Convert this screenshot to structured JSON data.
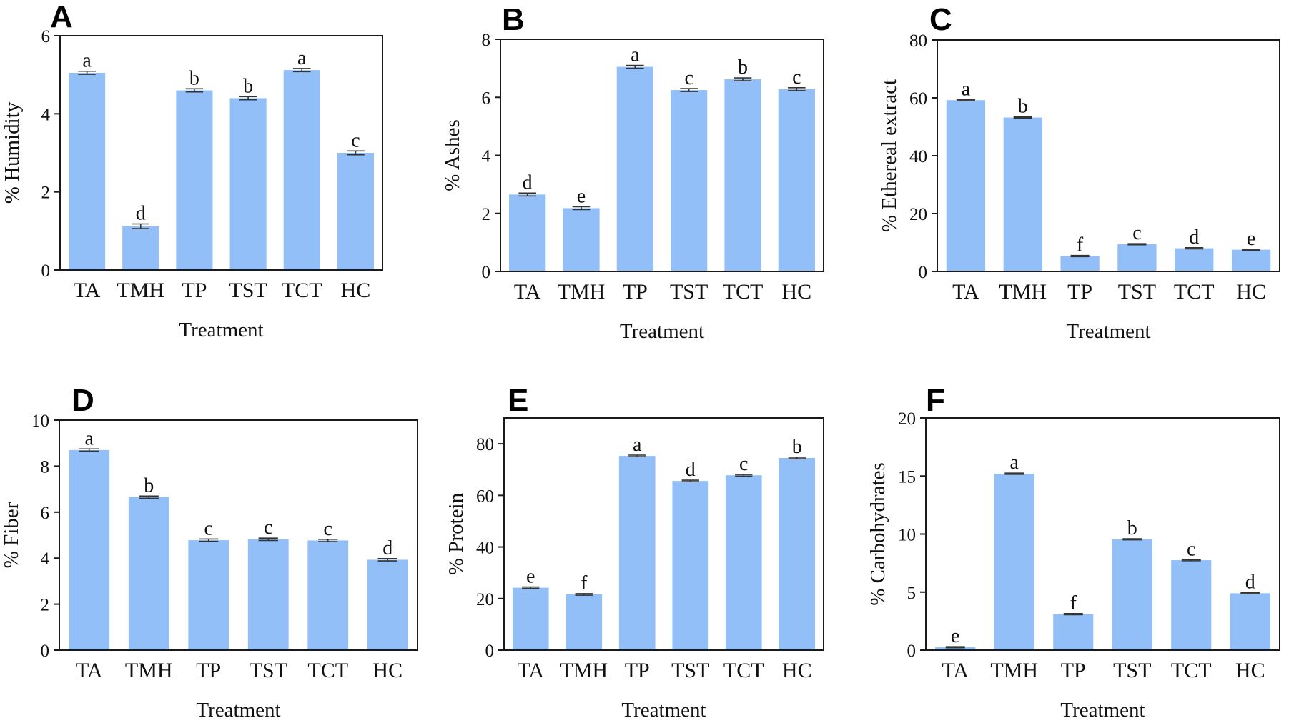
{
  "chart_data": [
    {
      "panel": "A",
      "type": "bar",
      "categories": [
        "TA",
        "TMH",
        "TP",
        "TST",
        "TCT",
        "HC"
      ],
      "values": [
        5.05,
        1.12,
        4.6,
        4.4,
        5.12,
        3.0
      ],
      "errors": [
        0.04,
        0.06,
        0.04,
        0.04,
        0.04,
        0.05
      ],
      "letters": [
        "a",
        "d",
        "b",
        "b",
        "a",
        "c"
      ],
      "xlabel": "Treatment",
      "ylabel": "% Humidity",
      "ylim": [
        0,
        6
      ],
      "yticks": [
        0,
        2,
        4,
        6
      ],
      "color": "#92bff7"
    },
    {
      "panel": "B",
      "type": "bar",
      "categories": [
        "TA",
        "TMH",
        "TP",
        "TST",
        "TCT",
        "HC"
      ],
      "values": [
        2.65,
        2.18,
        7.05,
        6.25,
        6.62,
        6.28
      ],
      "errors": [
        0.05,
        0.05,
        0.05,
        0.05,
        0.05,
        0.05
      ],
      "letters": [
        "d",
        "e",
        "a",
        "c",
        "b",
        "c"
      ],
      "xlabel": "Treatment",
      "ylabel": "% Ashes",
      "ylim": [
        0,
        8
      ],
      "yticks": [
        0,
        2,
        4,
        6,
        8
      ],
      "color": "#92bff7"
    },
    {
      "panel": "C",
      "type": "bar",
      "categories": [
        "TA",
        "TMH",
        "TP",
        "TST",
        "TCT",
        "HC"
      ],
      "values": [
        59.2,
        53.2,
        5.3,
        9.4,
        8.0,
        7.5
      ],
      "errors": [
        0.2,
        0.2,
        0.2,
        0.2,
        0.2,
        0.2
      ],
      "letters": [
        "a",
        "b",
        "f",
        "c",
        "d",
        "e"
      ],
      "xlabel": "Treatment",
      "ylabel": "% Ethereal extract",
      "ylim": [
        0,
        80
      ],
      "yticks": [
        0,
        20,
        40,
        60,
        80
      ],
      "color": "#92bff7"
    },
    {
      "panel": "D",
      "type": "bar",
      "categories": [
        "TA",
        "TMH",
        "TP",
        "TST",
        "TCT",
        "HC"
      ],
      "values": [
        8.7,
        6.65,
        4.78,
        4.82,
        4.77,
        3.93
      ],
      "errors": [
        0.05,
        0.05,
        0.05,
        0.05,
        0.05,
        0.05
      ],
      "letters": [
        "a",
        "b",
        "c",
        "c",
        "c",
        "d"
      ],
      "xlabel": "Treatment",
      "ylabel": "% Fiber",
      "ylim": [
        0,
        10
      ],
      "yticks": [
        0,
        2,
        4,
        6,
        8,
        10
      ],
      "color": "#92bff7"
    },
    {
      "panel": "E",
      "type": "bar",
      "categories": [
        "TA",
        "TMH",
        "TP",
        "TST",
        "TCT",
        "HC"
      ],
      "values": [
        24.2,
        21.6,
        75.3,
        65.6,
        67.8,
        74.5
      ],
      "errors": [
        0.3,
        0.3,
        0.3,
        0.3,
        0.3,
        0.3
      ],
      "letters": [
        "e",
        "f",
        "a",
        "d",
        "c",
        "b"
      ],
      "xlabel": "Treatment",
      "ylabel": "% Protein",
      "ylim": [
        0,
        90
      ],
      "yticks": [
        0,
        20,
        40,
        60,
        80
      ],
      "color": "#92bff7"
    },
    {
      "panel": "F",
      "type": "bar",
      "categories": [
        "TA",
        "TMH",
        "TP",
        "TST",
        "TCT",
        "HC"
      ],
      "values": [
        0.25,
        15.2,
        3.1,
        9.55,
        7.75,
        4.9
      ],
      "errors": [
        0.05,
        0.05,
        0.05,
        0.05,
        0.05,
        0.05
      ],
      "letters": [
        "e",
        "a",
        "f",
        "b",
        "c",
        "d"
      ],
      "xlabel": "Treatment",
      "ylabel": "% Carbohydrates",
      "ylim": [
        0,
        20
      ],
      "yticks": [
        0,
        5,
        10,
        15,
        20
      ],
      "color": "#92bff7"
    }
  ]
}
